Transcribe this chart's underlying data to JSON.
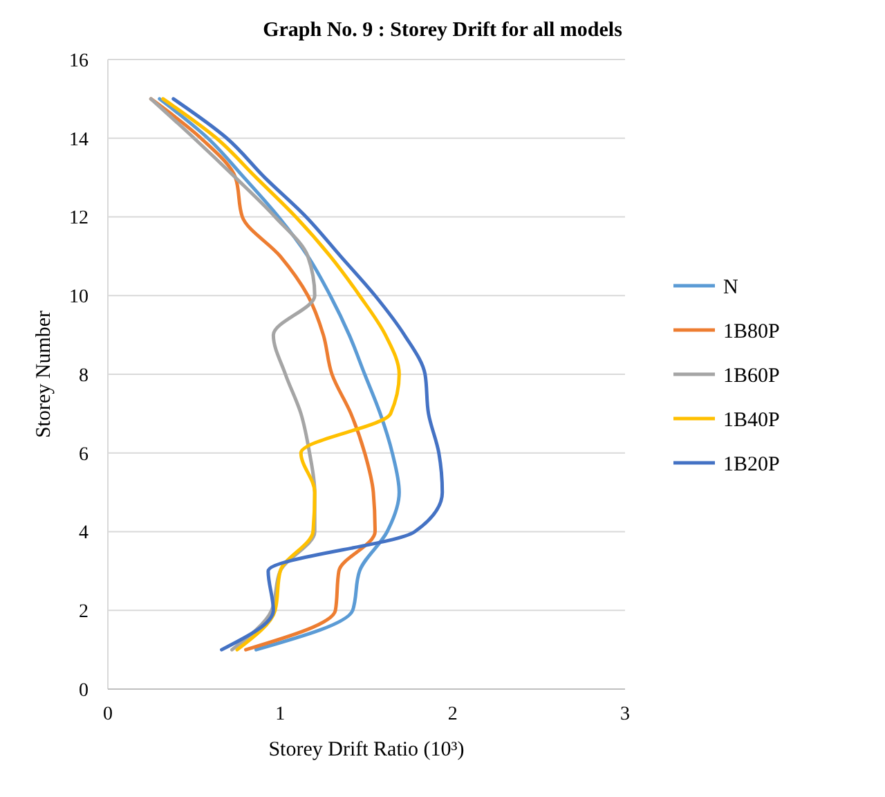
{
  "chart_data": {
    "type": "line",
    "title": "Graph No. 9 : Storey Drift for all models",
    "xlabel": "Storey Drift Ratio (10³)",
    "ylabel": "Storey Number",
    "xlim": [
      0,
      3
    ],
    "xticks": [
      0,
      1,
      2,
      3
    ],
    "ylim": [
      0,
      16
    ],
    "yticks": [
      0,
      2,
      4,
      6,
      8,
      10,
      12,
      14,
      16
    ],
    "grid": "y",
    "legend": "right",
    "series": [
      {
        "name": "N",
        "color": "#5b9bd5",
        "x": [
          0.86,
          1.42,
          1.46,
          1.62,
          1.69,
          1.65,
          1.58,
          1.49,
          1.4,
          1.29,
          1.16,
          0.99,
          0.79,
          0.58,
          0.3
        ],
        "values": [
          1,
          2,
          3,
          4,
          5,
          6,
          7,
          8,
          9,
          10,
          11,
          12,
          13,
          14,
          15
        ]
      },
      {
        "name": "1B80P",
        "color": "#ed7d31",
        "x": [
          0.8,
          1.32,
          1.34,
          1.55,
          1.54,
          1.49,
          1.41,
          1.3,
          1.25,
          1.16,
          1.0,
          0.78,
          0.74,
          0.54,
          0.25
        ],
        "values": [
          1,
          2,
          3,
          4,
          5,
          6,
          7,
          8,
          9,
          10,
          11,
          12,
          13,
          14,
          15
        ]
      },
      {
        "name": "1B60P",
        "color": "#a5a5a5",
        "x": [
          0.72,
          0.95,
          1.0,
          1.2,
          1.2,
          1.17,
          1.12,
          1.03,
          0.96,
          1.2,
          1.16,
          0.97,
          0.74,
          0.5,
          0.25
        ],
        "values": [
          1,
          2,
          3,
          4,
          5,
          6,
          7,
          8,
          9,
          10,
          11,
          12,
          13,
          14,
          15
        ]
      },
      {
        "name": "1B40P",
        "color": "#ffc000",
        "x": [
          0.75,
          0.97,
          1.0,
          1.19,
          1.2,
          1.12,
          1.64,
          1.69,
          1.61,
          1.46,
          1.29,
          1.09,
          0.86,
          0.63,
          0.32
        ],
        "values": [
          1,
          2,
          3,
          4,
          5,
          6,
          7,
          8,
          9,
          10,
          11,
          12,
          13,
          14,
          15
        ]
      },
      {
        "name": "1B20P",
        "color": "#4472c4",
        "x": [
          0.66,
          0.96,
          0.93,
          1.78,
          1.94,
          1.92,
          1.86,
          1.84,
          1.72,
          1.55,
          1.35,
          1.15,
          0.91,
          0.69,
          0.38
        ],
        "values": [
          1,
          2,
          3,
          4,
          5,
          6,
          7,
          8,
          9,
          10,
          11,
          12,
          13,
          14,
          15
        ]
      }
    ]
  }
}
